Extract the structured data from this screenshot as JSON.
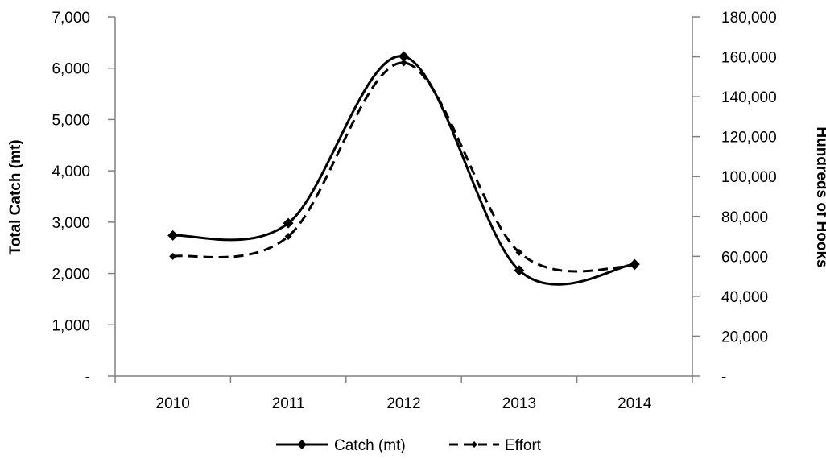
{
  "chart_data": {
    "type": "line",
    "categories": [
      "2010",
      "2011",
      "2012",
      "2013",
      "2014"
    ],
    "series": [
      {
        "name": "Catch (mt)",
        "axis": "left",
        "values": [
          2740,
          2980,
          6230,
          2060,
          2180
        ],
        "line_style": "solid",
        "marker": "diamond",
        "color": "#000000"
      },
      {
        "name": "Effort",
        "axis": "right",
        "values": [
          60000,
          70000,
          157000,
          62000,
          55000
        ],
        "line_style": "dashed",
        "marker": "small-diamond",
        "color": "#000000"
      }
    ],
    "ylabel_left": "Total Catch (mt)",
    "ylabel_right": "Hundreds of Hooks",
    "ylim_left": [
      0,
      7000
    ],
    "ylim_right": [
      0,
      180000
    ],
    "yticks_left": [
      "-",
      "1,000",
      "2,000",
      "3,000",
      "4,000",
      "5,000",
      "6,000",
      "7,000"
    ],
    "yticks_right": [
      "-",
      "20,000",
      "40,000",
      "60,000",
      "80,000",
      "100,000",
      "120,000",
      "140,000",
      "160,000",
      "180,000"
    ],
    "grid": false,
    "smoothed": true,
    "legend_position": "bottom-center"
  }
}
